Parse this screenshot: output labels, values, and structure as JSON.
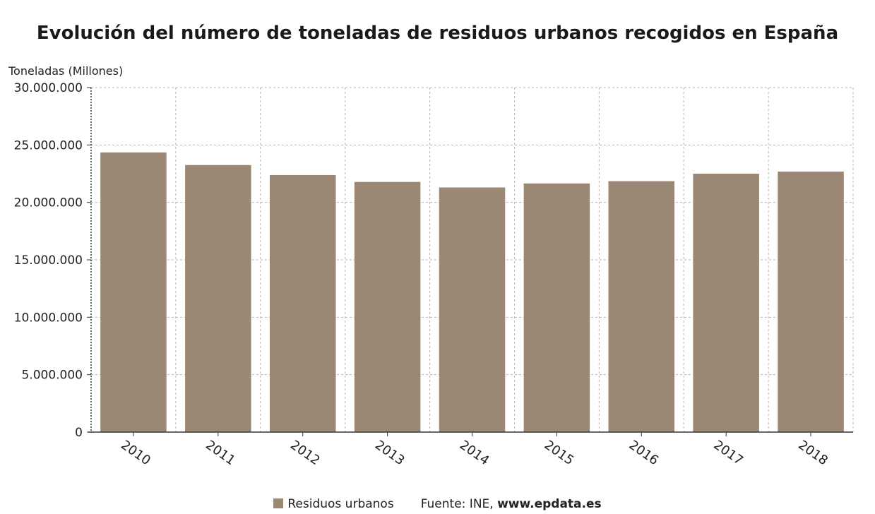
{
  "chart_data": {
    "type": "bar",
    "title": "Evolución del número de toneladas de residuos urbanos recogidos en España",
    "ylabel": "Toneladas (Millones)",
    "xlabel": "",
    "categories": [
      "2010",
      "2011",
      "2012",
      "2013",
      "2014",
      "2015",
      "2016",
      "2017",
      "2018"
    ],
    "series": [
      {
        "name": "Residuos urbanos",
        "values": [
          24350000,
          23250000,
          22380000,
          21780000,
          21300000,
          21650000,
          21850000,
          22500000,
          22680000
        ]
      }
    ],
    "ylim": [
      0,
      30000000
    ],
    "yticks": [
      0,
      5000000,
      10000000,
      15000000,
      20000000,
      25000000,
      30000000
    ],
    "ytick_labels": [
      "0",
      "5.000.000",
      "10.000.000",
      "15.000.000",
      "20.000.000",
      "25.000.000",
      "30.000.000"
    ],
    "grid": true,
    "legend_position": "bottom",
    "colors": {
      "bar": "#9a8874",
      "grid": "#b5b5b5",
      "axis": "#333333"
    }
  },
  "legend": {
    "series_label": "Residuos urbanos",
    "source_prefix": "Fuente: INE, ",
    "source_site": "www.epdata.es"
  }
}
